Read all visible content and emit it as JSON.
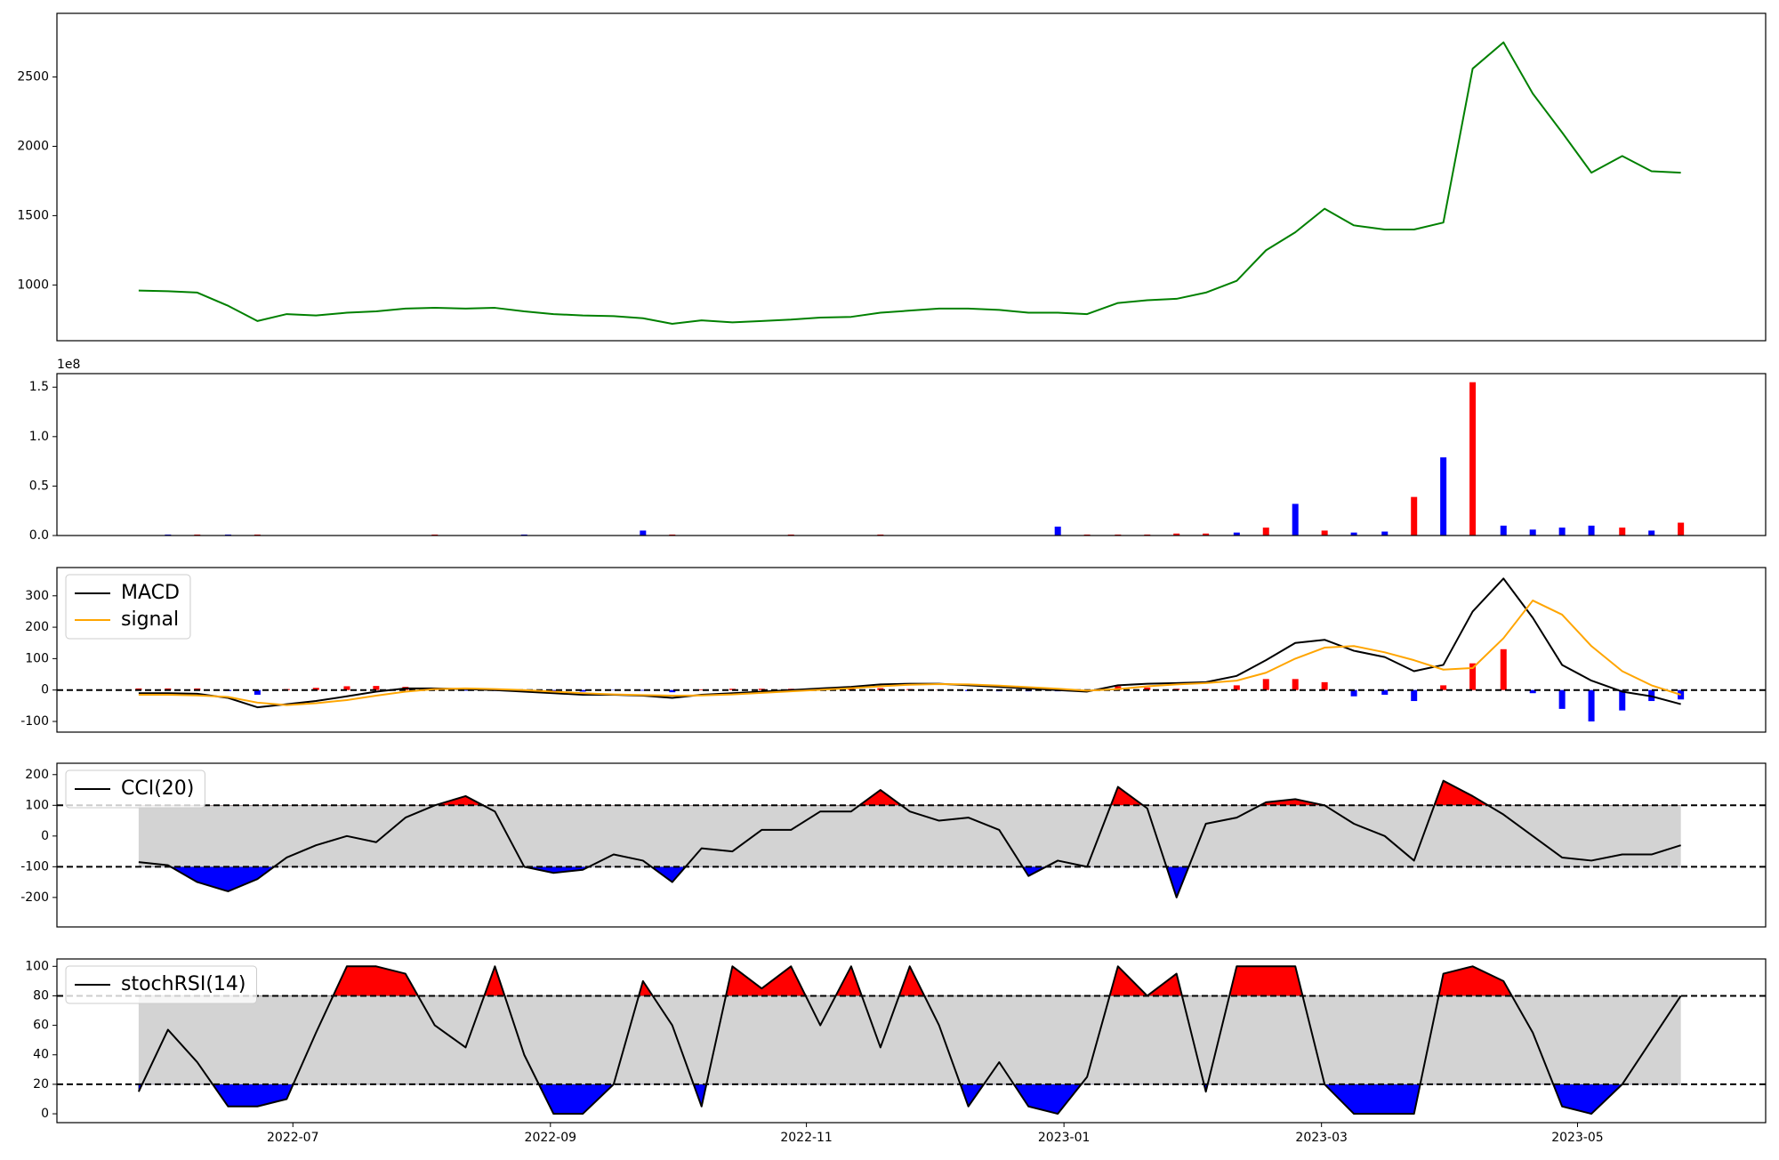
{
  "chart_data": [
    {
      "type": "line",
      "x": [
        2022.4,
        2022.419,
        2022.438,
        2022.458,
        2022.477,
        2022.496,
        2022.515,
        2022.535,
        2022.554,
        2022.573,
        2022.592,
        2022.612,
        2022.631,
        2022.65,
        2022.669,
        2022.688,
        2022.708,
        2022.727,
        2022.746,
        2022.765,
        2022.785,
        2022.804,
        2022.823,
        2022.842,
        2022.862,
        2022.881,
        2022.9,
        2022.919,
        2022.938,
        2022.958,
        2022.977,
        2022.996,
        2023.015,
        2023.035,
        2023.054,
        2023.073,
        2023.092,
        2023.112,
        2023.131,
        2023.15,
        2023.169,
        2023.188,
        2023.208,
        2023.227,
        2023.246,
        2023.265,
        2023.285,
        2023.304,
        2023.323,
        2023.342,
        2023.362,
        2023.381,
        2023.4
      ],
      "series": [
        {
          "color": "#008000",
          "values": [
            960,
            955,
            945,
            850,
            740,
            790,
            780,
            800,
            810,
            830,
            835,
            830,
            835,
            810,
            790,
            780,
            775,
            760,
            720,
            745,
            730,
            740,
            750,
            765,
            770,
            800,
            815,
            830,
            830,
            820,
            800,
            800,
            790,
            870,
            890,
            900,
            945,
            1030,
            1250,
            1380,
            1550,
            1430,
            1400,
            1400,
            1450,
            2560,
            2750,
            2380,
            2100,
            1810,
            1930,
            1820,
            1810
          ]
        }
      ],
      "xlim": [
        2022.347,
        2023.455
      ],
      "ylim": [
        598,
        2959
      ],
      "yticks": [
        1000,
        1500,
        2000,
        2500
      ]
    },
    {
      "type": "bar",
      "x": [
        2022.4,
        2022.419,
        2022.438,
        2022.458,
        2022.477,
        2022.496,
        2022.515,
        2022.535,
        2022.554,
        2022.573,
        2022.592,
        2022.612,
        2022.631,
        2022.65,
        2022.669,
        2022.688,
        2022.708,
        2022.727,
        2022.746,
        2022.765,
        2022.785,
        2022.804,
        2022.823,
        2022.842,
        2022.862,
        2022.881,
        2022.9,
        2022.919,
        2022.938,
        2022.958,
        2022.977,
        2022.996,
        2023.015,
        2023.035,
        2023.054,
        2023.073,
        2023.092,
        2023.112,
        2023.131,
        2023.15,
        2023.169,
        2023.188,
        2023.208,
        2023.227,
        2023.246,
        2023.265,
        2023.285,
        2023.304,
        2023.323,
        2023.342,
        2023.362,
        2023.381,
        2023.4
      ],
      "values": [
        0,
        0.01,
        0.01,
        0.01,
        0.01,
        0,
        0,
        0,
        0,
        0,
        0.01,
        0,
        0,
        0.01,
        0,
        0,
        0,
        0.05,
        0.01,
        0,
        0,
        0,
        0.01,
        0,
        0,
        0.01,
        0,
        0,
        0,
        0,
        0,
        0.09,
        0.01,
        0.01,
        0.01,
        0.02,
        0.02,
        0.03,
        0.08,
        0.32,
        0.05,
        0.03,
        0.04,
        0.39,
        0.79,
        1.55,
        0.1,
        0.06,
        0.08,
        0.1,
        0.08,
        0.05,
        0.13
      ],
      "bar_colors": [
        "#0000ff",
        "#0000ff",
        "#ff0000",
        "#0000ff",
        "#ff0000",
        "#ff0000",
        "#0000ff",
        "#ff0000",
        "#ff0000",
        "#0000ff",
        "#ff0000",
        "#0000ff",
        "#ff0000",
        "#0000ff",
        "#ff0000",
        "#0000ff",
        "#ff0000",
        "#0000ff",
        "#ff0000",
        "#ff0000",
        "#0000ff",
        "#ff0000",
        "#ff0000",
        "#0000ff",
        "#ff0000",
        "#ff0000",
        "#0000ff",
        "#ff0000",
        "#0000ff",
        "#ff0000",
        "#ff0000",
        "#0000ff",
        "#ff0000",
        "#ff0000",
        "#ff0000",
        "#ff0000",
        "#ff0000",
        "#0000ff",
        "#ff0000",
        "#0000ff",
        "#ff0000",
        "#0000ff",
        "#0000ff",
        "#ff0000",
        "#0000ff",
        "#ff0000",
        "#0000ff",
        "#0000ff",
        "#0000ff",
        "#0000ff",
        "#ff0000",
        "#0000ff",
        "#ff0000"
      ],
      "offset_label": "1e8",
      "xlim": [
        2022.347,
        2023.455
      ],
      "ylim": [
        0,
        1.637
      ],
      "yticks": [
        {
          "value": 0,
          "label": "0.0"
        },
        {
          "value": 0.5,
          "label": "0.5"
        },
        {
          "value": 1,
          "label": "1.0"
        },
        {
          "value": 1.5,
          "label": "1.5"
        }
      ]
    },
    {
      "type": "line",
      "x": [
        2022.4,
        2022.419,
        2022.438,
        2022.458,
        2022.477,
        2022.496,
        2022.515,
        2022.535,
        2022.554,
        2022.573,
        2022.592,
        2022.612,
        2022.631,
        2022.65,
        2022.669,
        2022.688,
        2022.708,
        2022.727,
        2022.746,
        2022.765,
        2022.785,
        2022.804,
        2022.823,
        2022.842,
        2022.862,
        2022.881,
        2022.9,
        2022.919,
        2022.938,
        2022.958,
        2022.977,
        2022.996,
        2023.015,
        2023.035,
        2023.054,
        2023.073,
        2023.092,
        2023.112,
        2023.131,
        2023.15,
        2023.169,
        2023.188,
        2023.208,
        2023.227,
        2023.246,
        2023.265,
        2023.285,
        2023.304,
        2023.323,
        2023.342,
        2023.362,
        2023.381,
        2023.4
      ],
      "histogram": [
        5,
        5,
        5,
        -3,
        -15,
        3,
        7,
        12,
        13,
        10,
        2,
        -2,
        -3,
        -5,
        -5,
        -5,
        -1,
        -2,
        -7,
        2,
        4,
        4,
        4,
        4,
        4,
        6,
        3,
        1,
        -3,
        -4,
        -4,
        -4,
        -3,
        12,
        8,
        4,
        3,
        15,
        35,
        35,
        25,
        -20,
        -15,
        -35,
        15,
        85,
        130,
        -10,
        -60,
        -100,
        -65,
        -35,
        -30
      ],
      "hist_colors": {
        "positive": "#ff0000",
        "negative": "#0000ff"
      },
      "series": [
        {
          "name": "MACD",
          "color": "#000000",
          "values": [
            -10,
            -10,
            -12,
            -25,
            -55,
            -45,
            -35,
            -20,
            -5,
            5,
            5,
            3,
            0,
            -5,
            -10,
            -15,
            -15,
            -18,
            -25,
            -15,
            -10,
            -5,
            0,
            5,
            10,
            18,
            20,
            20,
            15,
            10,
            5,
            0,
            -5,
            15,
            20,
            22,
            25,
            45,
            95,
            150,
            160,
            125,
            105,
            60,
            80,
            250,
            355,
            230,
            80,
            30,
            -5,
            -20,
            -45
          ]
        },
        {
          "name": "signal",
          "color": "#ffa500",
          "values": [
            -15,
            -15,
            -17,
            -22,
            -40,
            -48,
            -42,
            -32,
            -18,
            -5,
            3,
            5,
            3,
            0,
            -5,
            -10,
            -14,
            -16,
            -18,
            -17,
            -14,
            -9,
            -4,
            1,
            6,
            12,
            17,
            19,
            18,
            14,
            9,
            4,
            -2,
            3,
            12,
            18,
            22,
            30,
            55,
            100,
            135,
            140,
            120,
            95,
            65,
            70,
            165,
            285,
            240,
            140,
            60,
            15,
            -15
          ]
        }
      ],
      "hlines": [
        0
      ],
      "legend": "upper left",
      "xlim": [
        2022.347,
        2023.455
      ],
      "ylim": [
        -134,
        390
      ],
      "yticks": [
        -100,
        0,
        100,
        200,
        300
      ]
    },
    {
      "type": "line",
      "x": [
        2022.4,
        2022.419,
        2022.438,
        2022.458,
        2022.477,
        2022.496,
        2022.515,
        2022.535,
        2022.554,
        2022.573,
        2022.592,
        2022.612,
        2022.631,
        2022.65,
        2022.669,
        2022.688,
        2022.708,
        2022.727,
        2022.746,
        2022.765,
        2022.785,
        2022.804,
        2022.823,
        2022.842,
        2022.862,
        2022.881,
        2022.9,
        2022.919,
        2022.938,
        2022.958,
        2022.977,
        2022.996,
        2023.015,
        2023.035,
        2023.054,
        2023.073,
        2023.092,
        2023.112,
        2023.131,
        2023.15,
        2023.169,
        2023.188,
        2023.208,
        2023.227,
        2023.246,
        2023.265,
        2023.285,
        2023.304,
        2023.323,
        2023.342,
        2023.362,
        2023.381,
        2023.4
      ],
      "series": [
        {
          "name": "CCI(20)",
          "color": "#000000",
          "values": [
            -85,
            -95,
            -150,
            -180,
            -140,
            -70,
            -30,
            0,
            -20,
            60,
            100,
            130,
            80,
            -100,
            -120,
            -110,
            -60,
            -80,
            -150,
            -40,
            -50,
            20,
            20,
            80,
            80,
            150,
            80,
            50,
            60,
            20,
            -130,
            -80,
            -100,
            160,
            90,
            -200,
            40,
            60,
            110,
            120,
            100,
            40,
            0,
            -80,
            180,
            130,
            70,
            0,
            -70,
            -80,
            -60,
            -60,
            -30
          ]
        }
      ],
      "band": [
        -100,
        100
      ],
      "band_color": "#d3d3d3",
      "fill_colors": {
        "above": "#ff0000",
        "below": "#0000ff"
      },
      "hlines": [
        -100,
        100
      ],
      "legend": "upper left",
      "xlim": [
        2022.347,
        2023.455
      ],
      "ylim": [
        -296,
        237
      ],
      "yticks": [
        -200,
        -100,
        0,
        100,
        200
      ]
    },
    {
      "type": "line",
      "x": [
        2022.4,
        2022.419,
        2022.438,
        2022.458,
        2022.477,
        2022.496,
        2022.515,
        2022.535,
        2022.554,
        2022.573,
        2022.592,
        2022.612,
        2022.631,
        2022.65,
        2022.669,
        2022.688,
        2022.708,
        2022.727,
        2022.746,
        2022.765,
        2022.785,
        2022.804,
        2022.823,
        2022.842,
        2022.862,
        2022.881,
        2022.9,
        2022.919,
        2022.938,
        2022.958,
        2022.977,
        2022.996,
        2023.015,
        2023.035,
        2023.054,
        2023.073,
        2023.092,
        2023.112,
        2023.131,
        2023.15,
        2023.169,
        2023.188,
        2023.208,
        2023.227,
        2023.246,
        2023.265,
        2023.285,
        2023.304,
        2023.323,
        2023.342,
        2023.362,
        2023.381,
        2023.4
      ],
      "series": [
        {
          "name": "stochRSI(14)",
          "color": "#000000",
          "values": [
            15,
            57,
            35,
            5,
            5,
            10,
            55,
            100,
            100,
            95,
            60,
            45,
            100,
            40,
            0,
            0,
            20,
            90,
            60,
            5,
            100,
            85,
            100,
            60,
            100,
            45,
            100,
            60,
            5,
            35,
            5,
            0,
            25,
            100,
            80,
            95,
            15,
            100,
            100,
            100,
            20,
            0,
            0,
            0,
            95,
            100,
            90,
            55,
            5,
            0,
            20,
            50,
            80
          ]
        }
      ],
      "band": [
        20,
        80
      ],
      "band_color": "#d3d3d3",
      "fill_colors": {
        "above": "#ff0000",
        "below": "#0000ff"
      },
      "hlines": [
        20,
        80
      ],
      "legend": "upper left",
      "xlim": [
        2022.347,
        2023.455
      ],
      "ylim": [
        -6,
        105
      ],
      "yticks": [
        0,
        20,
        40,
        60,
        80,
        100
      ],
      "xticks": [
        {
          "value": 2022.5,
          "label": "2022-07"
        },
        {
          "value": 2022.667,
          "label": "2022-09"
        },
        {
          "value": 2022.833,
          "label": "2022-11"
        },
        {
          "value": 2023.0,
          "label": "2023-01"
        },
        {
          "value": 2023.167,
          "label": "2023-03"
        },
        {
          "value": 2023.333,
          "label": "2023-05"
        }
      ]
    }
  ]
}
